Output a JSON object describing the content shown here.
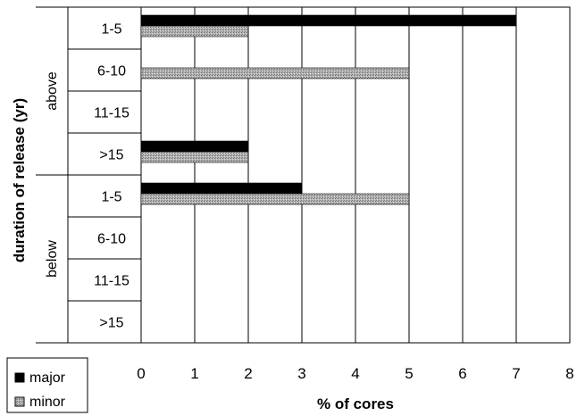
{
  "chart_data": {
    "type": "bar",
    "orientation": "horizontal",
    "xlabel": "% of cores",
    "ylabel": "duration of release (yr)",
    "xlim": [
      0,
      8
    ],
    "xticks": [
      0,
      1,
      2,
      3,
      4,
      5,
      6,
      7,
      8
    ],
    "grid": "vertical",
    "legend_position": "bottom-left",
    "groups": [
      {
        "label": "above",
        "categories": [
          "1-5",
          "6-10",
          "11-15",
          ">15"
        ]
      },
      {
        "label": "below",
        "categories": [
          "1-5",
          "6-10",
          "11-15",
          ">15"
        ]
      }
    ],
    "series": [
      {
        "name": "major",
        "color": "#000000",
        "values": [
          7,
          0,
          0,
          2,
          3,
          0,
          0,
          0
        ]
      },
      {
        "name": "minor",
        "color": "#a9a9a9",
        "pattern": "dotted-gray",
        "values": [
          2,
          5,
          0,
          2,
          5,
          0,
          0,
          0
        ]
      }
    ]
  }
}
